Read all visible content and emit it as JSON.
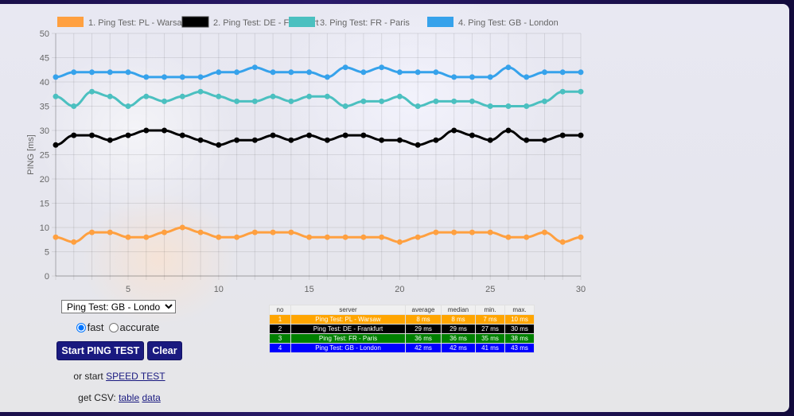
{
  "chart_data": {
    "type": "line",
    "title": "",
    "xlabel": "",
    "ylabel": "PING [ms]",
    "ylim": [
      0,
      50
    ],
    "xlim": [
      1,
      30
    ],
    "yticks": [
      0,
      5,
      10,
      15,
      20,
      25,
      30,
      35,
      40,
      45,
      50
    ],
    "xticks": [
      5,
      10,
      15,
      20,
      25,
      30
    ],
    "grid": true,
    "legend_position": "top",
    "x": [
      1,
      2,
      3,
      4,
      5,
      6,
      7,
      8,
      9,
      10,
      11,
      12,
      13,
      14,
      15,
      16,
      17,
      18,
      19,
      20,
      21,
      22,
      23,
      24,
      25,
      26,
      27,
      28,
      29,
      30
    ],
    "series": [
      {
        "name": "1. Ping Test: PL - Warsaw",
        "color": "#ffa040",
        "values": [
          8,
          7,
          9,
          9,
          8,
          8,
          9,
          10,
          9,
          8,
          8,
          9,
          9,
          9,
          8,
          8,
          8,
          8,
          8,
          7,
          8,
          9,
          9,
          9,
          9,
          8,
          8,
          9,
          7,
          8
        ]
      },
      {
        "name": "2. Ping Test: DE - Frankfurt",
        "color": "#000000",
        "values": [
          27,
          29,
          29,
          28,
          29,
          30,
          30,
          29,
          28,
          27,
          28,
          28,
          29,
          28,
          29,
          28,
          29,
          29,
          28,
          28,
          27,
          28,
          30,
          29,
          28,
          30,
          28,
          28,
          29,
          29
        ]
      },
      {
        "name": "3. Ping Test: FR - Paris",
        "color": "#4bc0c0",
        "values": [
          37,
          35,
          38,
          37,
          35,
          37,
          36,
          37,
          38,
          37,
          36,
          36,
          37,
          36,
          37,
          37,
          35,
          36,
          36,
          37,
          35,
          36,
          36,
          36,
          35,
          35,
          35,
          36,
          38,
          38
        ]
      },
      {
        "name": "4. Ping Test: GB - London",
        "color": "#36a2eb",
        "values": [
          41,
          42,
          42,
          42,
          42,
          41,
          41,
          41,
          41,
          42,
          42,
          43,
          42,
          42,
          42,
          41,
          43,
          42,
          43,
          42,
          42,
          42,
          41,
          41,
          41,
          43,
          41,
          42,
          42,
          42
        ]
      }
    ]
  },
  "controls": {
    "server_select": {
      "selected": "Ping Test: GB - London"
    },
    "mode": {
      "fast_label": "fast",
      "accurate_label": "accurate",
      "selected": "fast"
    },
    "start_button": "Start PING TEST",
    "clear_button": "Clear",
    "speed_prefix": "or start ",
    "speed_link": "SPEED TEST",
    "csv_prefix": "get CSV: ",
    "csv_table_link": "table",
    "csv_data_link": "data"
  },
  "stats_table": {
    "headers": [
      "no",
      "server",
      "average",
      "median",
      "min.",
      "max."
    ],
    "rows": [
      {
        "color": "#ffa500",
        "cells": [
          "1",
          "Ping Test: PL - Warsaw",
          "8 ms",
          "8 ms",
          "7 ms",
          "10 ms"
        ]
      },
      {
        "color": "#000000",
        "cells": [
          "2",
          "Ping Test: DE - Frankfurt",
          "29 ms",
          "29 ms",
          "27 ms",
          "30 ms"
        ]
      },
      {
        "color": "#008000",
        "cells": [
          "3",
          "Ping Test: FR - Paris",
          "36 ms",
          "36 ms",
          "35 ms",
          "38 ms"
        ]
      },
      {
        "color": "#0000ff",
        "cells": [
          "4",
          "Ping Test: GB - London",
          "42 ms",
          "42 ms",
          "41 ms",
          "43 ms"
        ]
      }
    ]
  }
}
